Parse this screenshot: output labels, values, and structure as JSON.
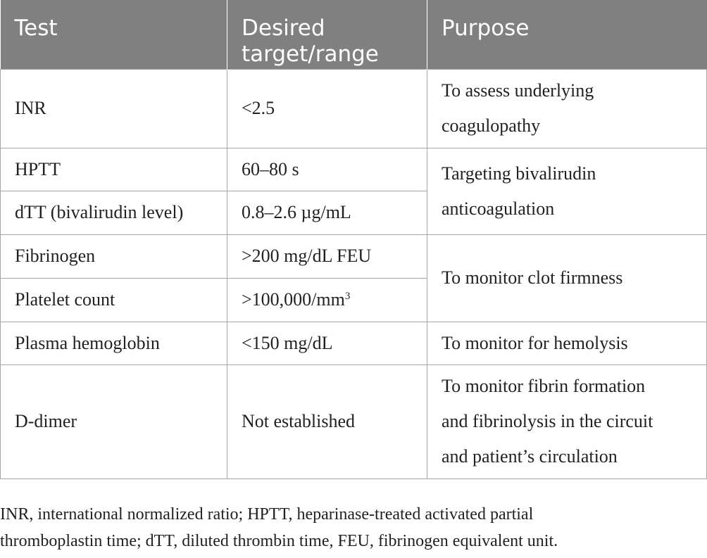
{
  "table": {
    "headers": {
      "test": "Test",
      "target_line1": "Desired",
      "target_line2": "target/range",
      "purpose": "Purpose"
    },
    "rows": {
      "inr": {
        "test": "INR",
        "target": "<2.5",
        "purpose_line1": "To assess underlying",
        "purpose_line2": "coagulopathy"
      },
      "hptt": {
        "test": "HPTT",
        "target": "60–80 s"
      },
      "dtt": {
        "test": "dTT (bivalirudin level)",
        "target": "0.8–2.6 µg/mL"
      },
      "bivalirudin_purpose_line1": "Targeting bivalirudin",
      "bivalirudin_purpose_line2": "anticoagulation",
      "fibrinogen": {
        "test": "Fibrinogen",
        "target": ">200 mg/dL FEU"
      },
      "platelet": {
        "test": "Platelet count",
        "target_base": ">100,000/mm",
        "target_exponent": "3"
      },
      "clot_purpose": "To monitor clot firmness",
      "plasma_hb": {
        "test": "Plasma hemoglobin",
        "target": "<150 mg/dL",
        "purpose": "To monitor for hemolysis"
      },
      "d_dimer": {
        "test": "D-dimer",
        "target": "Not established",
        "purpose_line1": "To monitor fibrin formation",
        "purpose_line2": "and fibrinolysis in the circuit",
        "purpose_line3": "and patient’s circulation"
      }
    }
  },
  "footnote": {
    "line1": "INR, international normalized ratio; HPTT, heparinase-treated activated partial",
    "line2": "thromboplastin time; dTT, diluted thrombin time, FEU, fibrinogen equivalent unit."
  }
}
